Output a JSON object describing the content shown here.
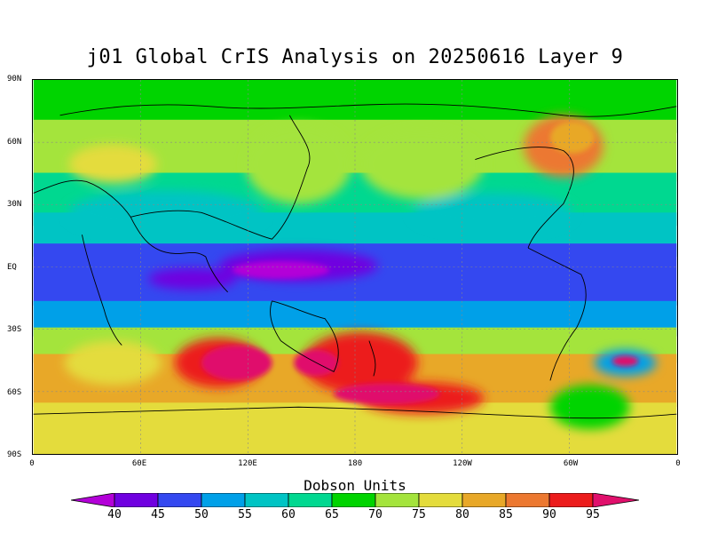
{
  "title": "j01 Global CrIS Analysis on 20250616 Layer 9",
  "y_axis_labels": [
    "90N",
    "60N",
    "30N",
    "EQ",
    "30S",
    "60S",
    "90S"
  ],
  "x_axis_labels": [
    "0",
    "60E",
    "120E",
    "180",
    "120W",
    "60W",
    "0"
  ],
  "colorbar": {
    "title": "Dobson Units",
    "tick_labels": [
      "40",
      "45",
      "50",
      "55",
      "60",
      "65",
      "70",
      "75",
      "80",
      "85",
      "90",
      "95"
    ],
    "colors": [
      "#b300d8",
      "#7000e0",
      "#3448f0",
      "#00a0e8",
      "#00c4c4",
      "#00d890",
      "#00d400",
      "#a4e43c",
      "#e4dc3c",
      "#e8a828",
      "#ec7830",
      "#ec1c1c",
      "#e0106c"
    ]
  }
}
